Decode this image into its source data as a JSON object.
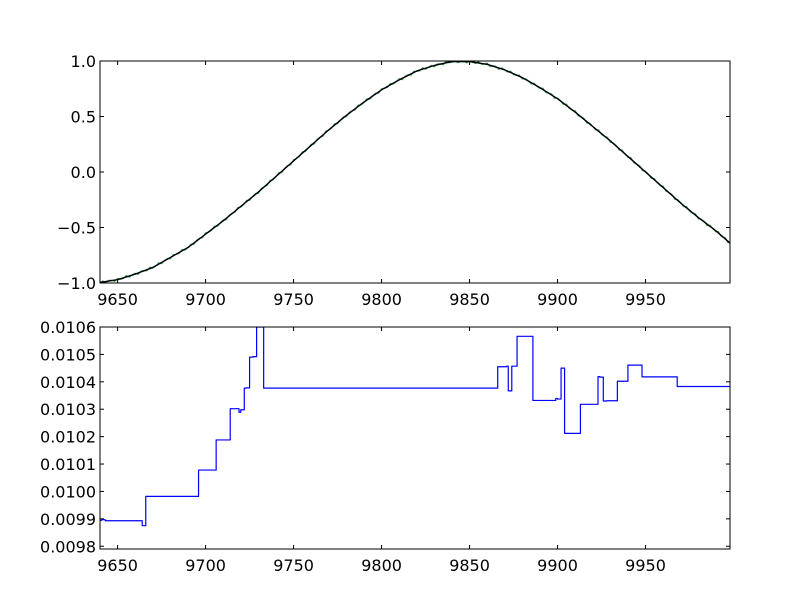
{
  "chart_data": [
    {
      "type": "line",
      "title": "",
      "xlabel": "",
      "ylabel": "",
      "xlim": [
        9640,
        9998
      ],
      "ylim": [
        -1.0,
        1.0
      ],
      "grid": false,
      "xticks": [
        9650,
        9700,
        9750,
        9800,
        9850,
        9900,
        9950
      ],
      "xtick_labels": [
        "9650",
        "9700",
        "9750",
        "9800",
        "9850",
        "9900",
        "9950"
      ],
      "yticks": [
        -1.0,
        -0.5,
        0.0,
        0.5,
        1.0
      ],
      "ytick_labels": [
        "−1.0",
        "−0.5",
        "0.0",
        "0.5",
        "1.0"
      ],
      "series": [
        {
          "color": "#2ca02c",
          "style": "noisy",
          "x": [
            9640,
            9650,
            9660,
            9670,
            9680,
            9690,
            9700,
            9710,
            9720,
            9730,
            9740,
            9750,
            9760,
            9770,
            9780,
            9790,
            9800,
            9810,
            9820,
            9830,
            9840,
            9850,
            9860,
            9870,
            9880,
            9890,
            9900,
            9910,
            9920,
            9930,
            9940,
            9950,
            9960,
            9970,
            9980,
            9990,
            9998
          ],
          "y": [
            -0.995,
            -0.97,
            -0.92,
            -0.86,
            -0.77,
            -0.68,
            -0.56,
            -0.44,
            -0.31,
            -0.18,
            -0.04,
            0.1,
            0.24,
            0.38,
            0.51,
            0.63,
            0.74,
            0.83,
            0.91,
            0.96,
            0.995,
            0.995,
            0.97,
            0.92,
            0.85,
            0.76,
            0.66,
            0.54,
            0.41,
            0.28,
            0.14,
            0.0,
            -0.14,
            -0.28,
            -0.41,
            -0.53,
            -0.64
          ]
        },
        {
          "color": "#0000ff",
          "style": "smooth",
          "x": [
            9640,
            9650,
            9660,
            9670,
            9680,
            9690,
            9700,
            9710,
            9720,
            9730,
            9740,
            9750,
            9760,
            9770,
            9780,
            9790,
            9800,
            9810,
            9820,
            9830,
            9840,
            9850,
            9860,
            9870,
            9880,
            9890,
            9900,
            9910,
            9920,
            9930,
            9940,
            9950,
            9960,
            9970,
            9980,
            9990,
            9998
          ],
          "y": [
            -0.995,
            -0.97,
            -0.92,
            -0.86,
            -0.77,
            -0.68,
            -0.56,
            -0.44,
            -0.31,
            -0.18,
            -0.04,
            0.1,
            0.24,
            0.38,
            0.51,
            0.63,
            0.74,
            0.83,
            0.91,
            0.96,
            0.995,
            0.995,
            0.97,
            0.92,
            0.85,
            0.76,
            0.66,
            0.54,
            0.41,
            0.28,
            0.14,
            0.0,
            -0.14,
            -0.28,
            -0.41,
            -0.53,
            -0.64
          ]
        },
        {
          "color": "#000000",
          "style": "smooth",
          "x": [
            9640,
            9650,
            9660,
            9670,
            9680,
            9690,
            9700,
            9710,
            9720,
            9730,
            9740,
            9750,
            9760,
            9770,
            9780,
            9790,
            9800,
            9810,
            9820,
            9830,
            9840,
            9850,
            9860,
            9870,
            9880,
            9890,
            9900,
            9910,
            9920,
            9930,
            9940,
            9950,
            9960,
            9970,
            9980,
            9990,
            9998
          ],
          "y": [
            -0.995,
            -0.97,
            -0.92,
            -0.86,
            -0.77,
            -0.68,
            -0.56,
            -0.44,
            -0.31,
            -0.18,
            -0.04,
            0.1,
            0.24,
            0.38,
            0.51,
            0.63,
            0.74,
            0.83,
            0.91,
            0.96,
            0.995,
            0.995,
            0.97,
            0.92,
            0.85,
            0.76,
            0.66,
            0.54,
            0.41,
            0.28,
            0.14,
            0.0,
            -0.14,
            -0.28,
            -0.41,
            -0.53,
            -0.64
          ]
        }
      ]
    },
    {
      "type": "line",
      "title": "",
      "xlabel": "",
      "ylabel": "",
      "xlim": [
        9640,
        9998
      ],
      "ylim": [
        0.00979,
        0.0106
      ],
      "grid": false,
      "xticks": [
        9650,
        9700,
        9750,
        9800,
        9850,
        9900,
        9950
      ],
      "xtick_labels": [
        "9650",
        "9700",
        "9750",
        "9800",
        "9850",
        "9900",
        "9950"
      ],
      "yticks": [
        0.0098,
        0.0099,
        0.01,
        0.0101,
        0.0102,
        0.0103,
        0.0104,
        0.0105,
        0.0106
      ],
      "ytick_labels": [
        "0.0098",
        "0.0099",
        "0.0100",
        "0.0101",
        "0.0102",
        "0.0103",
        "0.0104",
        "0.0105",
        "0.0106"
      ],
      "series": [
        {
          "color": "#0000ff",
          "x": [
            9640,
            9641,
            9641,
            9643,
            9643,
            9664,
            9664,
            9666,
            9666,
            9696,
            9696,
            9706,
            9706,
            9714,
            9714,
            9719,
            9719,
            9720,
            9720,
            9722,
            9722,
            9723,
            9723,
            9725,
            9725,
            9727,
            9727,
            9729,
            9729,
            9733,
            9733,
            9866,
            9866,
            9871,
            9871,
            9872,
            9872,
            9874,
            9874,
            9877,
            9877,
            9886,
            9886,
            9899,
            9899,
            9900,
            9900,
            9902,
            9902,
            9904,
            9904,
            9905,
            9906,
            9913,
            9913,
            9923,
            9923,
            9924,
            9924,
            9926,
            9926,
            9928,
            9928,
            9934,
            9934,
            9940,
            9940,
            9948,
            9948,
            9968,
            9968,
            9998
          ],
          "y": [
            0.009895,
            0.009895,
            0.009897,
            0.009897,
            0.009893,
            0.009893,
            0.009875,
            0.009875,
            0.009982,
            0.009982,
            0.010078,
            0.010078,
            0.010188,
            0.010188,
            0.010302,
            0.010302,
            0.010289,
            0.010289,
            0.010298,
            0.010298,
            0.010377,
            0.010377,
            0.010378,
            0.010378,
            0.01049,
            0.01049,
            0.010492,
            0.010492,
            0.0106,
            0.0106,
            0.010377,
            0.010377,
            0.010455,
            0.010455,
            0.010457,
            0.010457,
            0.010367,
            0.010367,
            0.010457,
            0.010457,
            0.010566,
            0.010566,
            0.010332,
            0.010332,
            0.010339,
            0.010339,
            0.010337,
            0.010337,
            0.01045,
            0.01045,
            0.010212,
            0.010212,
            0.010212,
            0.010212,
            0.010318,
            0.010318,
            0.010419,
            0.010419,
            0.010417,
            0.010417,
            0.01033,
            0.01033,
            0.010331,
            0.010331,
            0.010402,
            0.010402,
            0.010461,
            0.010461,
            0.010418,
            0.010418,
            0.010383,
            0.010383
          ]
        }
      ]
    }
  ]
}
